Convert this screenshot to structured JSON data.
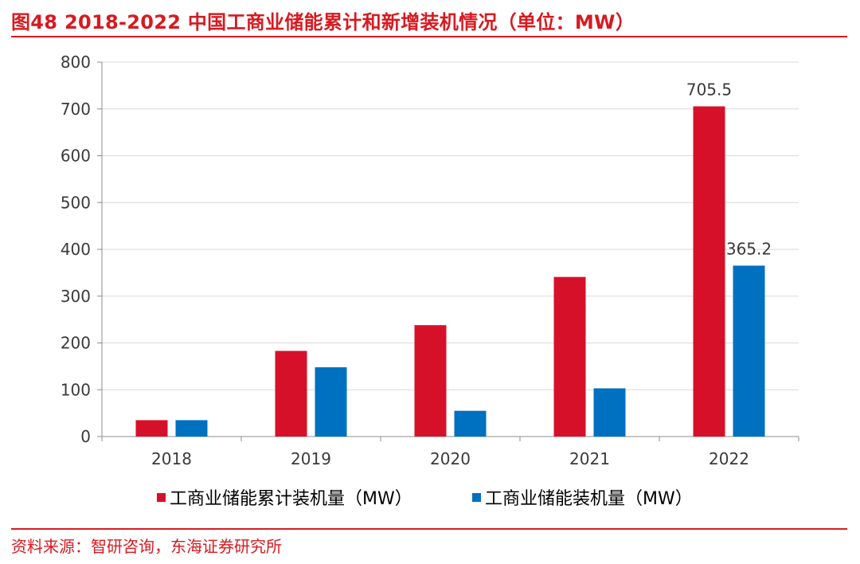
{
  "figure": {
    "title": "图48  2018-2022 中国工商业储能累计和新增装机情况（单位：MW）",
    "source": "资料来源：智研咨询，东海证券研究所"
  },
  "chart_data": {
    "type": "bar",
    "categories": [
      "2018",
      "2019",
      "2020",
      "2021",
      "2022"
    ],
    "series": [
      {
        "name": "工商业储能累计装机量（MW）",
        "color": "#d7102a",
        "values": [
          35,
          183,
          238,
          341,
          705.5
        ]
      },
      {
        "name": "工商业储能装机量（MW）",
        "color": "#0070c0",
        "values": [
          35,
          148,
          55,
          103,
          365.2
        ]
      }
    ],
    "data_labels": [
      {
        "series": 0,
        "index": 4,
        "text": "705.5"
      },
      {
        "series": 1,
        "index": 4,
        "text": "365.2"
      }
    ],
    "yticks": [
      "0",
      "100",
      "200",
      "300",
      "400",
      "500",
      "600",
      "700",
      "800"
    ],
    "ylim": [
      0,
      800
    ],
    "grid": true,
    "legend": "bottom"
  }
}
